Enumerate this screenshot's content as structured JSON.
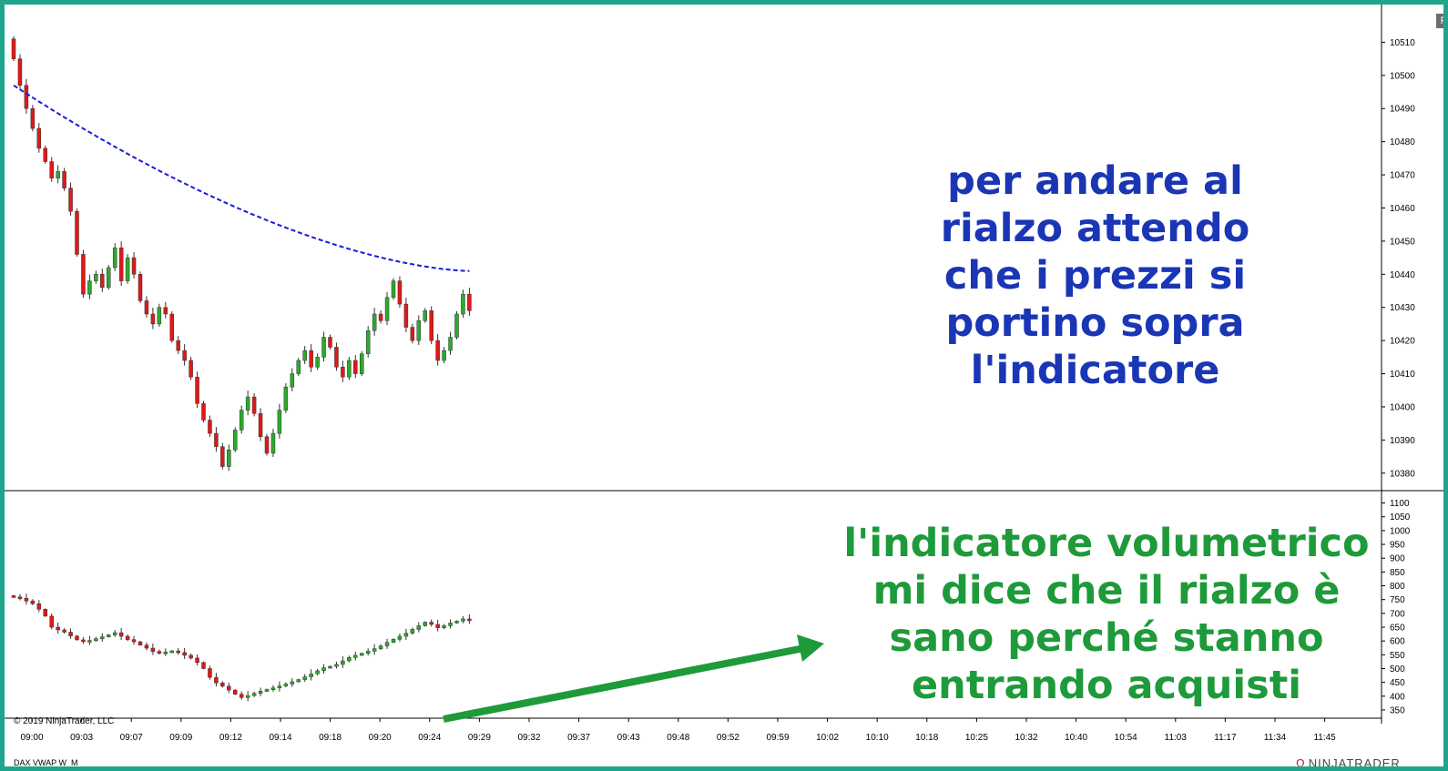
{
  "top_button": "F",
  "copyright": "© 2019 NinjaTrader, LLC",
  "instrument_label": "DAX VWAP W_M",
  "logo_text": "NINJATRADER",
  "logo_mark": "Ω",
  "annotation_blue": "per andare al\nrialzo attendo\nche i prezzi si\nportino sopra\nl'indicatore",
  "annotation_green": "l'indicatore volumetrico\nmi dice che il rialzo è\nsano perché stanno\nentrando acquisti",
  "colors": {
    "frame": "#1fa58c",
    "bull": "#2bab2b",
    "bear": "#e01818",
    "vwap": "#1a1adc",
    "annotation_blue": "#1a36b5",
    "annotation_green": "#1e9a3a",
    "arrow": "#1e9a3a"
  },
  "chart_data": [
    {
      "type": "candlestick",
      "panel": "price",
      "ylim": [
        10375,
        10520
      ],
      "y_ticks": [
        10380,
        10390,
        10400,
        10410,
        10420,
        10430,
        10440,
        10450,
        10460,
        10470,
        10480,
        10490,
        10500,
        10510
      ],
      "x_ticks": [
        "09:00",
        "09:03",
        "09:07",
        "09:09",
        "09:12",
        "09:14",
        "09:18",
        "09:20",
        "09:24",
        "09:29",
        "09:32",
        "09:37",
        "09:43",
        "09:48",
        "09:52",
        "09:59",
        "10:02",
        "10:10",
        "10:18",
        "10:25",
        "10:32",
        "10:40",
        "10:54",
        "11:03",
        "11:17",
        "11:34",
        "11:45"
      ],
      "close": [
        10505,
        10497,
        10490,
        10484,
        10478,
        10474,
        10469,
        10471,
        10466,
        10459,
        10446,
        10434,
        10438,
        10440,
        10436,
        10442,
        10448,
        10438,
        10445,
        10440,
        10432,
        10428,
        10425,
        10430,
        10428,
        10420,
        10417,
        10414,
        10409,
        10401,
        10396,
        10392,
        10388,
        10382,
        10387,
        10393,
        10399,
        10403,
        10398,
        10391,
        10386,
        10392,
        10399,
        10406,
        10410,
        10414,
        10417,
        10412,
        10415,
        10421,
        10418,
        10412,
        10409,
        10414,
        10410,
        10416,
        10423,
        10428,
        10426,
        10433,
        10438,
        10431,
        10424,
        10420,
        10426,
        10429,
        10420,
        10414,
        10417,
        10421,
        10428,
        10434,
        10429
      ],
      "vwap_start": 10497,
      "vwap_end": 10441
    },
    {
      "type": "candlestick",
      "panel": "volumetric indicator",
      "ylim": [
        330,
        1125
      ],
      "y_ticks": [
        350,
        400,
        450,
        500,
        550,
        600,
        650,
        700,
        750,
        800,
        850,
        900,
        950,
        1000,
        1050,
        1100
      ],
      "close": [
        760,
        755,
        745,
        735,
        715,
        690,
        650,
        640,
        632,
        618,
        604,
        598,
        602,
        608,
        615,
        622,
        630,
        617,
        605,
        597,
        585,
        574,
        562,
        556,
        560,
        564,
        558,
        548,
        538,
        522,
        500,
        468,
        448,
        436,
        422,
        407,
        395,
        402,
        410,
        418,
        424,
        430,
        437,
        444,
        452,
        460,
        470,
        481,
        492,
        503,
        508,
        515,
        528,
        540,
        548,
        555,
        563,
        572,
        582,
        595,
        606,
        617,
        628,
        642,
        655,
        668,
        660,
        648,
        655,
        665,
        672,
        680,
        675
      ]
    }
  ]
}
